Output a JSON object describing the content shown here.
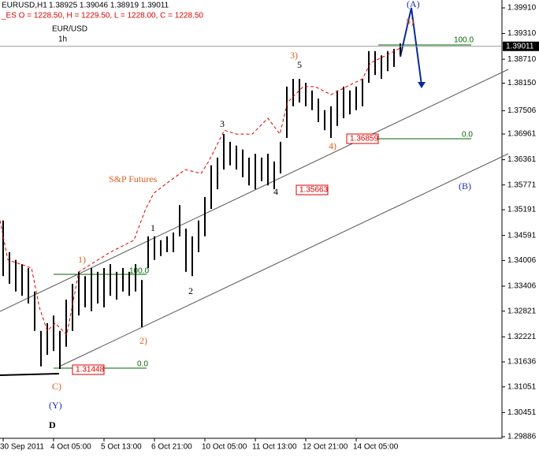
{
  "chart_data": {
    "type": "ohlc",
    "header": "1.38925 1.39046 1.38919 1.39011",
    "subheader": "_ES O = 1228.50, H = 1229.50, L = 1228.00, C = 1228.50",
    "ylim": [
      1.29868,
      1.40094
    ],
    "yticks": [
      {
        "value": 1.3991,
        "label": "1.39910"
      },
      {
        "value": 1.3931,
        "label": "1.39310"
      },
      {
        "value": 1.3871,
        "label": "1.38710"
      },
      {
        "value": 1.3815,
        "label": "1.38150"
      },
      1.37506,
      1.36961,
      1.36361,
      1.35771,
      1.35191,
      1.34591,
      1.34006,
      1.33406,
      1.32821,
      1.32221,
      1.31636,
      1.31051,
      1.30451,
      1.29886
    ],
    "last_price": 1.39011,
    "xticks": [
      {
        "value": 0,
        "label": "30 Sep 2011"
      },
      {
        "value": 8,
        "label": "4 Oct 05:00"
      },
      {
        "value": 16,
        "label": "5 Oct 13:00"
      },
      {
        "value": 24,
        "label": "6 Oct 21:00"
      },
      {
        "value": 32,
        "label": "10 Oct 05:00"
      },
      {
        "value": 40,
        "label": "11 Oct 13:00"
      },
      {
        "value": 48,
        "label": "12 Oct 21:00"
      },
      {
        "value": 56,
        "label": "14 Oct 05:00"
      }
    ],
    "series": [
      {
        "name": "EURUSD,H1",
        "color": "#000000",
        "high": [
          1.3494,
          1.342,
          1.3402,
          1.3392,
          1.3383,
          1.3328,
          1.3236,
          1.3254,
          1.3272,
          1.3236,
          1.3309,
          1.3346,
          1.3374,
          1.3364,
          1.3383,
          1.3374,
          1.3383,
          1.3392,
          1.3374,
          1.3383,
          1.3374,
          1.3392,
          1.3355,
          1.3457,
          1.3457,
          1.3448,
          1.3457,
          1.3466,
          1.353,
          1.3475,
          1.3457,
          1.3494,
          1.3549,
          1.3623,
          1.3641,
          1.3696,
          1.3678,
          1.3669,
          1.366,
          1.3641,
          1.365,
          1.3641,
          1.365,
          1.3632,
          1.3678,
          1.3807,
          1.3825,
          1.3825,
          1.3816,
          1.3798,
          1.3779,
          1.3752,
          1.3761,
          1.3798,
          1.3807,
          1.3798,
          1.3807,
          1.3825,
          1.389,
          1.389,
          1.388,
          1.389,
          1.3895,
          1.3908
        ],
        "low": [
          1.3364,
          1.3346,
          1.3328,
          1.3318,
          1.33,
          1.3236,
          1.3153,
          1.318,
          1.3189,
          1.3147,
          1.3199,
          1.3236,
          1.3272,
          1.3291,
          1.3282,
          1.33,
          1.3291,
          1.3318,
          1.3309,
          1.3328,
          1.3318,
          1.3328,
          1.3245,
          1.3383,
          1.3402,
          1.3411,
          1.342,
          1.342,
          1.3457,
          1.3374,
          1.3364,
          1.342,
          1.3457,
          1.3521,
          1.3567,
          1.3613,
          1.3623,
          1.3613,
          1.3595,
          1.3576,
          1.3567,
          1.3586,
          1.3576,
          1.3567,
          1.3604,
          1.3687,
          1.3761,
          1.377,
          1.3761,
          1.3752,
          1.3724,
          1.3705,
          1.3687,
          1.3715,
          1.3733,
          1.3742,
          1.3752,
          1.3761,
          1.3816,
          1.3834,
          1.3825,
          1.3843,
          1.3853,
          1.388
        ]
      },
      {
        "name": "S&P Futures",
        "color": "#dd0000",
        "x": [
          -0.5,
          0.75,
          4.5,
          5.75,
          7,
          8.25,
          10.1,
          12,
          17,
          20.75,
          22.6,
          23.9,
          26.4,
          28.9,
          31.4,
          32.6,
          35.1,
          37,
          39.5,
          42,
          43.9,
          45.1,
          47.6,
          49.5,
          52,
          54.5,
          57,
          58.25,
          60.75,
          63.25
        ],
        "values": [
          1.3494,
          1.3402,
          1.3383,
          1.3291,
          1.3236,
          1.3254,
          1.3227,
          1.3374,
          1.342,
          1.3448,
          1.3521,
          1.3558,
          1.3586,
          1.3613,
          1.3604,
          1.3632,
          1.3705,
          1.3696,
          1.3696,
          1.3733,
          1.3696,
          1.377,
          1.3807,
          1.3807,
          1.3788,
          1.3807,
          1.3825,
          1.3862,
          1.388,
          1.3899
        ]
      }
    ],
    "annotations": [
      "(A)",
      "5)",
      "3)",
      "5",
      "3",
      "4)",
      "4",
      "1",
      "2",
      "1)",
      "2)",
      "C)",
      "(Y)",
      "D",
      "(B)",
      "EUR/USD",
      "1h",
      "1.36859",
      "1.35663",
      "1.31448",
      "100.0",
      "0.0",
      "100.0",
      "0.0"
    ]
  }
}
